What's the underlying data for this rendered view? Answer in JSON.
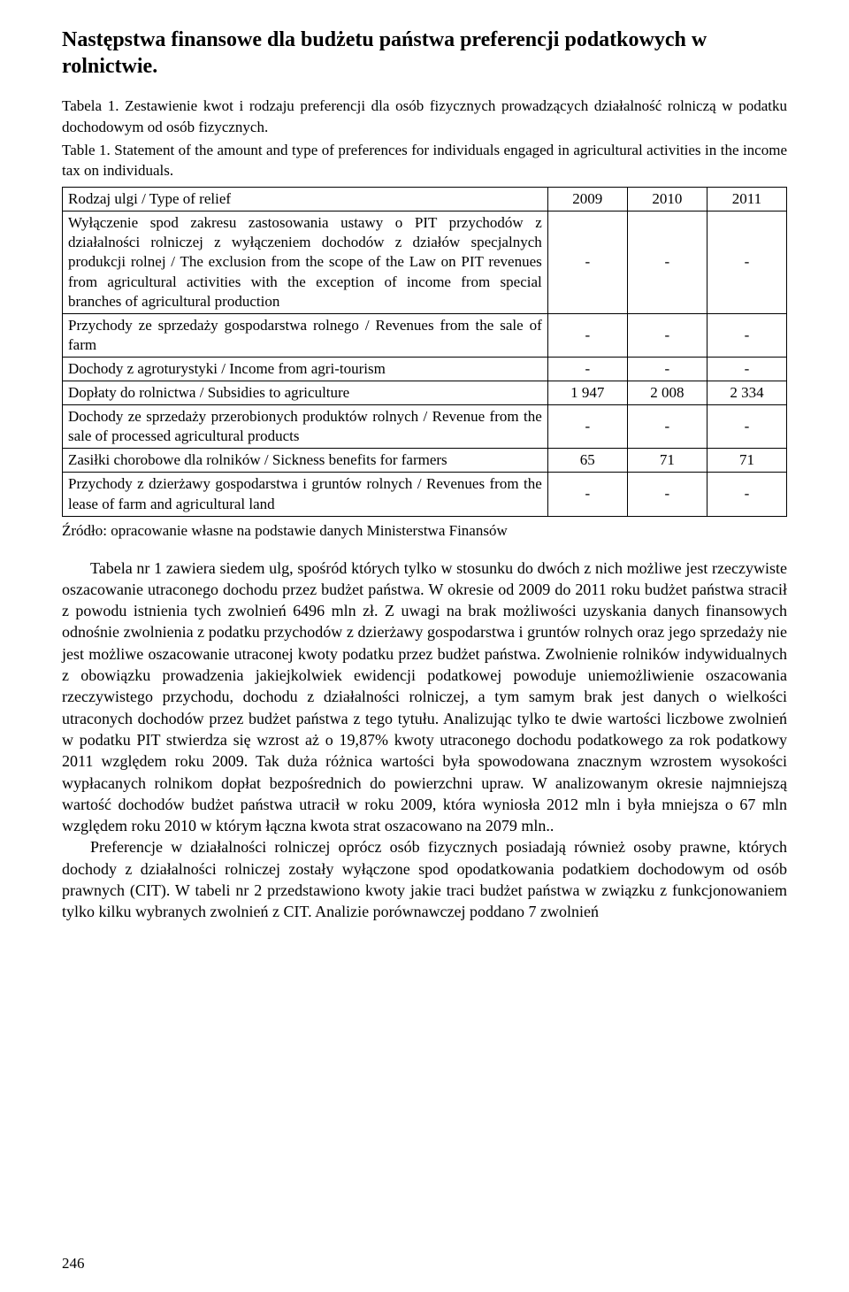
{
  "heading": "Następstwa finansowe dla budżetu państwa preferencji podatkowych w rolnictwie.",
  "caption_pl": "Tabela 1. Zestawienie kwot i rodzaju preferencji dla osób fizycznych prowadzących działalność rolniczą w podatku dochodowym od osób fizycznych.",
  "caption_en": "Table 1. Statement of the amount and type of preferences for individuals engaged in agricultural activities in the income tax on individuals.",
  "table": {
    "header_label": "Rodzaj ulgi / Type of relief",
    "years": [
      "2009",
      "2010",
      "2011"
    ],
    "rows": [
      {
        "label": "Wyłączenie spod zakresu zastosowania ustawy o PIT przychodów z działalności rolniczej z wyłączeniem dochodów z działów specjalnych produkcji rolnej / The exclusion from the scope of the Law on PIT revenues from agricultural activities with the exception of income from special branches of agricultural production",
        "values": [
          "-",
          "-",
          "-"
        ]
      },
      {
        "label": "Przychody ze sprzedaży gospodarstwa rolnego / Revenues from the sale of farm",
        "values": [
          "-",
          "-",
          "-"
        ]
      },
      {
        "label": "Dochody z agroturystyki / Income from agri-tourism",
        "values": [
          "-",
          "-",
          "-"
        ]
      },
      {
        "label": "Dopłaty do rolnictwa / Subsidies to agriculture",
        "values": [
          "1 947",
          "2 008",
          "2 334"
        ]
      },
      {
        "label": "Dochody ze sprzedaży przerobionych produktów rolnych / Revenue from the sale of processed agricultural products",
        "values": [
          "-",
          "-",
          "-"
        ]
      },
      {
        "label": "Zasiłki chorobowe dla rolników / Sickness benefits for farmers",
        "values": [
          "65",
          "71",
          "71"
        ]
      },
      {
        "label": "Przychody z dzierżawy gospodarstwa i gruntów rolnych / Revenues from the lease of farm and agricultural land",
        "values": [
          "-",
          "-",
          "-"
        ]
      }
    ]
  },
  "source": "Źródło: opracowanie własne na podstawie danych Ministerstwa Finansów",
  "para1": "Tabela nr 1 zawiera siedem ulg, spośród których tylko w stosunku do dwóch z nich możliwe jest rzeczywiste oszacowanie utraconego dochodu przez budżet państwa. W okresie od 2009 do 2011 roku budżet państwa stracił z powodu istnienia tych zwolnień 6496 mln zł. Z uwagi na brak możliwości uzyskania danych finansowych odnośnie zwolnienia z podatku przychodów z dzierżawy gospodarstwa i gruntów rolnych oraz jego sprzedaży nie jest możliwe oszacowanie utraconej kwoty podatku przez budżet państwa. Zwolnienie rolników indywidualnych z obowiązku prowadzenia jakiejkolwiek ewidencji podatkowej powoduje uniemożliwienie oszacowania rzeczywistego przychodu, dochodu z działalności rolniczej, a tym samym brak jest danych o wielkości utraconych dochodów przez budżet państwa z tego tytułu. Analizując tylko te dwie wartości liczbowe zwolnień w podatku PIT stwierdza się wzrost aż o 19,87% kwoty utraconego dochodu podatkowego za rok podatkowy 2011 względem roku 2009. Tak duża różnica wartości była spowodowana znacznym wzrostem wysokości wypłacanych rolnikom dopłat bezpośrednich do powierzchni upraw. W analizowanym okresie najmniejszą wartość dochodów budżet państwa utracił w roku 2009, która wyniosła 2012 mln i była mniejsza o 67 mln względem roku 2010 w którym łączna kwota strat oszacowano na 2079 mln..",
  "para2": "Preferencje w działalności rolniczej oprócz osób fizycznych posiadają również osoby prawne, których dochody z działalności rolniczej zostały wyłączone spod opodatkowania podatkiem dochodowym od osób prawnych (CIT). W tabeli nr 2 przedstawiono kwoty jakie traci budżet państwa w związku z funkcjonowaniem tylko kilku wybranych zwolnień z CIT. Analizie porównawczej poddano 7 zwolnień",
  "page_number": "246",
  "col_widths": {
    "label_pct": 67,
    "year_pct": 11
  }
}
